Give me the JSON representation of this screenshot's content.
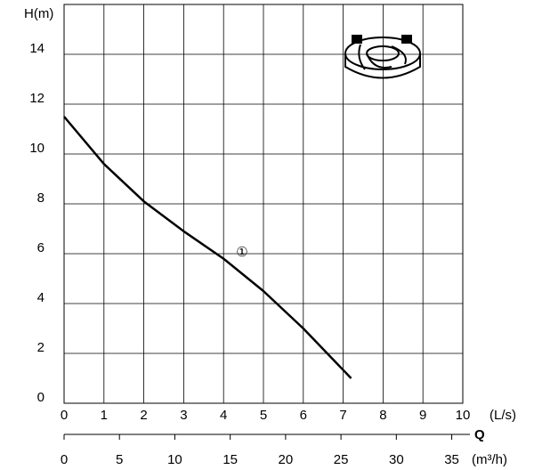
{
  "chart_data": {
    "type": "line",
    "y_label": "H(m)",
    "x_label": "(L/s)",
    "x2_name": "Q",
    "x2_label": "(m³/h)",
    "annotation": "①",
    "xlim": [
      0,
      10
    ],
    "xticks": [
      0,
      1,
      2,
      3,
      4,
      5,
      6,
      7,
      8,
      9,
      10
    ],
    "ylim": [
      0,
      16
    ],
    "yticks": [
      0,
      2,
      4,
      6,
      8,
      10,
      12,
      14
    ],
    "x2lim": [
      0,
      36
    ],
    "x2ticks": [
      0,
      5,
      10,
      15,
      20,
      25,
      30,
      35
    ],
    "grid": true,
    "series": [
      {
        "color": "#000000",
        "x": [
          0,
          1,
          2,
          3,
          4,
          5,
          6,
          7.2
        ],
        "values": [
          11.5,
          9.6,
          8.1,
          6.9,
          5.8,
          4.5,
          3.0,
          1.0
        ]
      }
    ]
  }
}
